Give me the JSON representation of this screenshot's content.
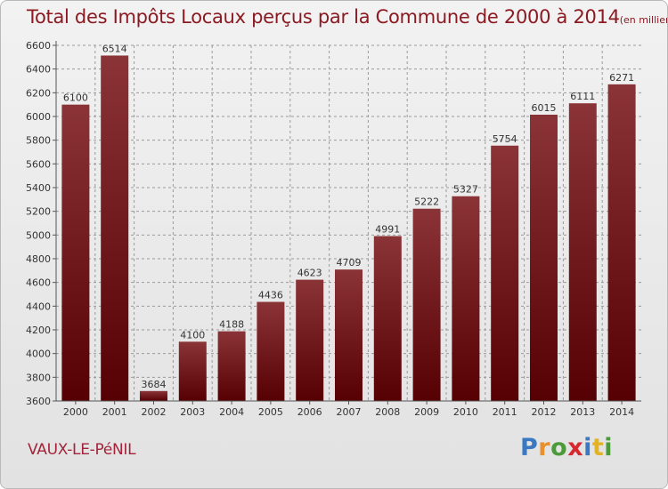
{
  "title": "Total des Impôts Locaux perçus par la Commune de 2000 à 2014",
  "unit_note": "(en milliers d'€)",
  "commune": "VAUX-LE-PéNIL",
  "logo": {
    "text": "Proxiti",
    "letters": [
      {
        "ch": "P",
        "color": "#3a78c2"
      },
      {
        "ch": "r",
        "color": "#e8912c"
      },
      {
        "ch": "o",
        "color": "#4d9a3a"
      },
      {
        "ch": "x",
        "color": "#d8272e"
      },
      {
        "ch": "i",
        "color": "#3a78c2"
      },
      {
        "ch": "t",
        "color": "#e3b326"
      },
      {
        "ch": "i",
        "color": "#4d9a3a"
      }
    ]
  },
  "colors": {
    "bar_top": "#8b3438",
    "bar_bottom": "#560003",
    "grid": "#9a9a9a",
    "axis": "#555555",
    "text": "#333333"
  },
  "chart_data": {
    "type": "bar",
    "title": "Total des Impôts Locaux perçus par la Commune de 2000 à 2014",
    "xlabel": "",
    "ylabel": "",
    "categories": [
      "2000",
      "2001",
      "2002",
      "2003",
      "2004",
      "2005",
      "2006",
      "2007",
      "2008",
      "2009",
      "2010",
      "2011",
      "2012",
      "2013",
      "2014"
    ],
    "values": [
      6100,
      6514,
      3684,
      4100,
      4188,
      4436,
      4623,
      4709,
      4991,
      5222,
      5327,
      5754,
      6015,
      6111,
      6271
    ],
    "ylim": [
      3600,
      6600
    ],
    "yticks": [
      3600,
      3800,
      4000,
      4200,
      4400,
      4600,
      4800,
      5000,
      5200,
      5400,
      5600,
      5800,
      6000,
      6200,
      6400,
      6600
    ],
    "grid": true
  }
}
